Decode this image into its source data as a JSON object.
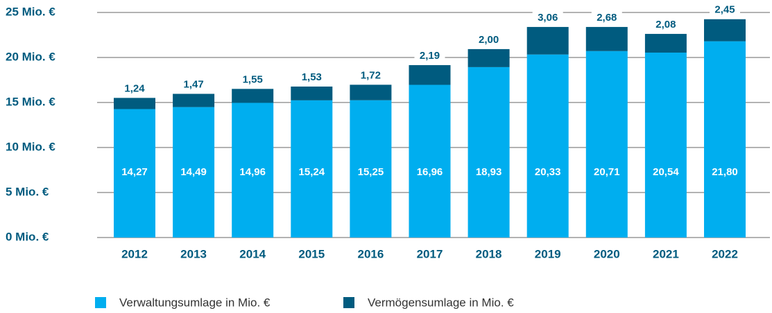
{
  "chart_data": {
    "type": "stacked_bar",
    "categories": [
      "2012",
      "2013",
      "2014",
      "2015",
      "2016",
      "2017",
      "2018",
      "2019",
      "2020",
      "2021",
      "2022"
    ],
    "series": [
      {
        "name": "Verwaltungsumlage in Mio. €",
        "color": "#00aeef",
        "values": [
          14.27,
          14.49,
          14.96,
          15.24,
          15.25,
          16.96,
          18.93,
          20.33,
          20.71,
          20.54,
          21.8
        ],
        "value_labels": [
          "14,27",
          "14,49",
          "14,96",
          "15,24",
          "15,25",
          "16,96",
          "18,93",
          "20,33",
          "20,71",
          "20,54",
          "21,80"
        ]
      },
      {
        "name": "Vermögensumlage in Mio. €",
        "color": "#005b7f",
        "values": [
          1.24,
          1.47,
          1.55,
          1.53,
          1.72,
          2.19,
          2.0,
          3.06,
          2.68,
          2.08,
          2.45
        ],
        "value_labels": [
          "1,24",
          "1,47",
          "1,55",
          "1,53",
          "1,72",
          "2,19",
          "2,00",
          "3,06",
          "2,68",
          "2,08",
          "2,45"
        ]
      }
    ],
    "ylim": [
      0,
      25
    ],
    "yticks": [
      {
        "value": 0,
        "label": "0 Mio. €"
      },
      {
        "value": 5,
        "label": "5 Mio. €"
      },
      {
        "value": 10,
        "label": "10 Mio. €"
      },
      {
        "value": 15,
        "label": "15 Mio. €"
      },
      {
        "value": 20,
        "label": "20 Mio. €"
      },
      {
        "value": 25,
        "label": "25 Mio. €"
      }
    ],
    "grid": true
  }
}
